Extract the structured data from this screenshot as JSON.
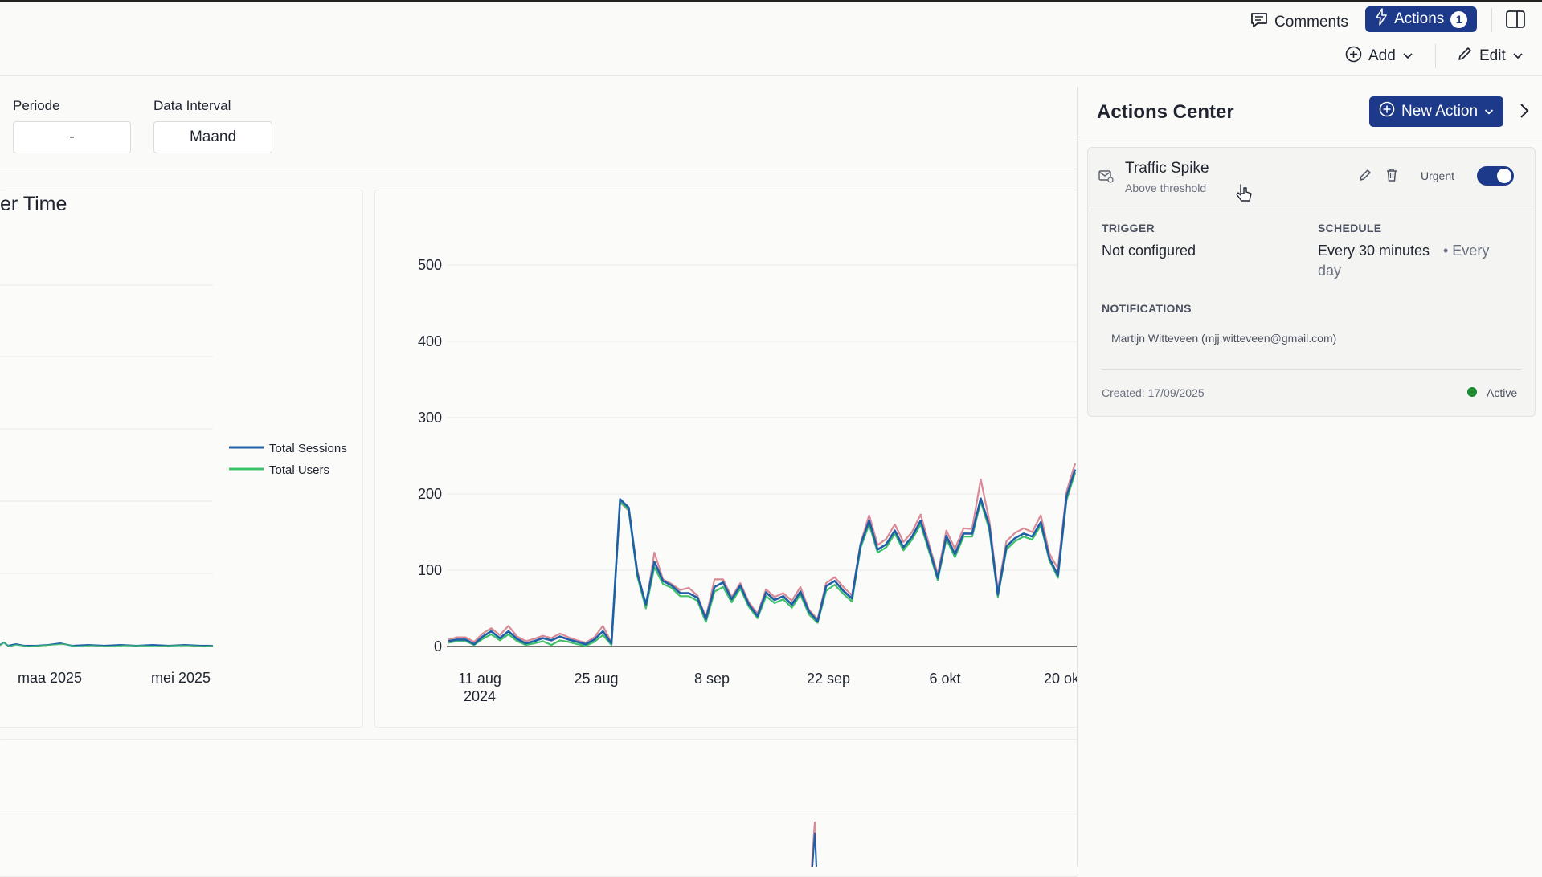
{
  "toolbar": {
    "comments_label": "Comments",
    "actions_label": "Actions",
    "actions_count": "1",
    "add_label": "Add",
    "edit_label": "Edit"
  },
  "filters": {
    "periode": {
      "label": "Periode",
      "value": "-"
    },
    "interval": {
      "label": "Data Interval",
      "value": "Maand"
    }
  },
  "left_chart": {
    "title_fragment": "er Time",
    "x_ticks": [
      "maa 2025",
      "mei 2025"
    ],
    "legend": [
      "Total Sessions",
      "Total Users"
    ]
  },
  "chart_data": {
    "type": "line",
    "y_ticks": [
      "0",
      "100",
      "200",
      "300",
      "400",
      "500"
    ],
    "ylim": [
      0,
      500
    ],
    "x_ticks": [
      {
        "line1": "11 aug",
        "line2": "2024"
      },
      {
        "line1": "25 aug",
        "line2": ""
      },
      {
        "line1": "8 sep",
        "line2": ""
      },
      {
        "line1": "22 sep",
        "line2": ""
      },
      {
        "line1": "6 okt",
        "line2": ""
      },
      {
        "line1": "20 ok",
        "line2": ""
      }
    ],
    "series": [
      {
        "color": "#d98a96",
        "values": [
          9,
          12,
          12,
          6,
          17,
          24,
          15,
          27,
          13,
          7,
          10,
          14,
          11,
          17,
          12,
          8,
          5,
          12,
          27,
          5,
          189,
          178,
          100,
          52,
          123,
          88,
          82,
          74,
          77,
          67,
          38,
          88,
          88,
          65,
          83,
          58,
          43,
          75,
          65,
          70,
          60,
          78,
          48,
          36,
          83,
          91,
          78,
          67,
          135,
          172,
          133,
          141,
          160,
          137,
          150,
          173,
          133,
          95,
          152,
          128,
          155,
          154,
          219,
          165,
          74,
          138,
          149,
          155,
          150,
          172,
          122,
          102,
          203,
          240
        ]
      },
      {
        "color": "#1f5fa8",
        "values": [
          7,
          9,
          9,
          3,
          13,
          20,
          11,
          20,
          10,
          4,
          7,
          11,
          8,
          13,
          9,
          6,
          3,
          9,
          20,
          4,
          193,
          182,
          96,
          55,
          111,
          86,
          80,
          70,
          70,
          64,
          36,
          78,
          84,
          62,
          80,
          55,
          40,
          71,
          61,
          66,
          55,
          72,
          46,
          33,
          79,
          86,
          73,
          63,
          133,
          165,
          127,
          134,
          152,
          130,
          144,
          165,
          128,
          90,
          145,
          121,
          148,
          148,
          194,
          158,
          68,
          131,
          142,
          148,
          144,
          163,
          116,
          93,
          197,
          232
        ]
      },
      {
        "color": "#3fc06a",
        "values": [
          5,
          7,
          7,
          2,
          10,
          16,
          8,
          16,
          7,
          2,
          4,
          7,
          2,
          8,
          6,
          3,
          1,
          6,
          15,
          2,
          190,
          179,
          92,
          50,
          104,
          82,
          77,
          66,
          66,
          60,
          32,
          72,
          78,
          58,
          76,
          52,
          37,
          66,
          57,
          62,
          51,
          68,
          42,
          31,
          73,
          81,
          69,
          59,
          129,
          160,
          123,
          130,
          148,
          126,
          140,
          160,
          124,
          87,
          141,
          117,
          144,
          144,
          190,
          153,
          65,
          127,
          138,
          144,
          140,
          159,
          113,
          90,
          192,
          228
        ]
      }
    ]
  },
  "actions_center": {
    "title": "Actions Center",
    "new_action_label": "New Action",
    "action": {
      "title": "Traffic Spike",
      "subtitle": "Above threshold",
      "urgent_label": "Urgent",
      "trigger_label": "TRIGGER",
      "trigger_value": "Not configured",
      "schedule_label": "SCHEDULE",
      "schedule_value": "Every 30 minutes",
      "schedule_extra_1": "• Every",
      "schedule_extra_2": "day",
      "notifications_label": "NOTIFICATIONS",
      "recipient": "Martijn Witteveen (mjj.witteveen@gmail.com)",
      "created": "Created: 17/09/2025",
      "status": "Active",
      "status_color": "#1a8a2e"
    }
  }
}
